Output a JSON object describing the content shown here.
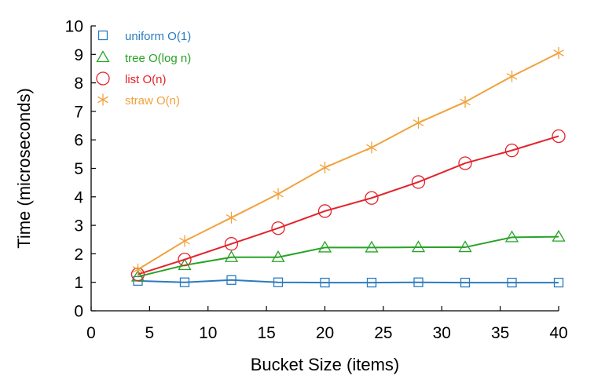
{
  "chart_data": {
    "type": "line",
    "title": "",
    "xlabel": "Bucket Size (items)",
    "ylabel": "Time (microseconds)",
    "xlim": [
      0,
      40
    ],
    "ylim": [
      0,
      10
    ],
    "xticks": [
      0,
      5,
      10,
      15,
      20,
      25,
      30,
      35,
      40
    ],
    "yticks": [
      0,
      1,
      2,
      3,
      4,
      5,
      6,
      7,
      8,
      9,
      10
    ],
    "grid": false,
    "legend_position": "top-left",
    "x": [
      4,
      8,
      12,
      16,
      20,
      24,
      28,
      32,
      36,
      40
    ],
    "series": [
      {
        "name": "uniform O(1)",
        "color": "#2b7bbf",
        "marker": "square",
        "values": [
          1.05,
          1.0,
          1.08,
          1.0,
          0.99,
          0.99,
          1.0,
          0.99,
          0.99,
          0.99
        ]
      },
      {
        "name": "tree O(log n)",
        "color": "#27a327",
        "marker": "triangle",
        "values": [
          1.2,
          1.6,
          1.88,
          1.88,
          2.22,
          2.22,
          2.23,
          2.23,
          2.58,
          2.6
        ]
      },
      {
        "name": "list O(n)",
        "color": "#e3222a",
        "marker": "circle",
        "values": [
          1.28,
          1.8,
          2.35,
          2.9,
          3.5,
          3.96,
          4.52,
          5.18,
          5.63,
          6.13
        ]
      },
      {
        "name": "straw O(n)",
        "color": "#f0a23c",
        "marker": "star",
        "values": [
          1.45,
          2.45,
          3.27,
          4.1,
          5.03,
          5.73,
          6.6,
          7.33,
          8.23,
          9.05
        ]
      }
    ]
  }
}
